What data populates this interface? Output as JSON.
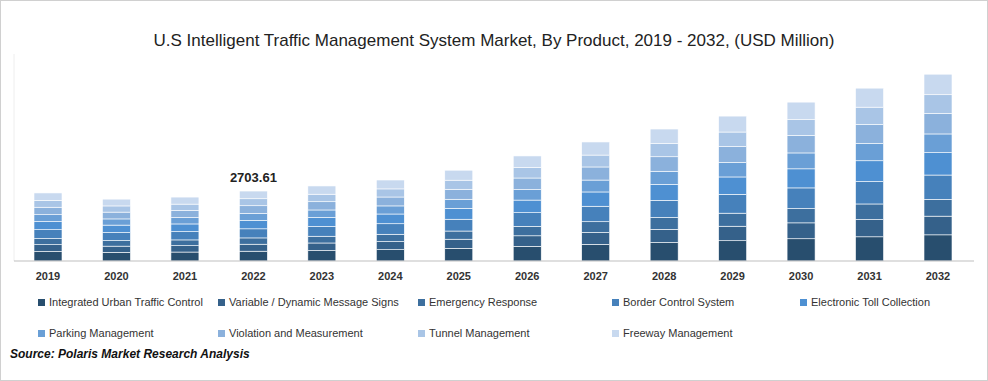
{
  "chart_data": {
    "type": "bar",
    "stacked": true,
    "title": "U.S Intelligent Traffic Management System Market, By Product, 2019 - 2032, (USD Million)",
    "categories": [
      "2019",
      "2020",
      "2021",
      "2022",
      "2023",
      "2024",
      "2025",
      "2026",
      "2027",
      "2028",
      "2029",
      "2030",
      "2031",
      "2032"
    ],
    "series": [
      {
        "name": "Integrated Urban Traffic Control",
        "color": "#284e6e",
        "values": [
          368,
          335,
          346,
          378.51,
          406,
          438,
          491,
          568,
          644,
          714,
          784,
          860,
          935,
          1011
        ]
      },
      {
        "name": "Variable / Dynamic Message Signs",
        "color": "#35618a",
        "values": [
          263,
          239,
          247,
          270.36,
          290,
          313,
          351,
          406,
          460,
          510,
          560,
          614,
          668,
          722
        ]
      },
      {
        "name": "Emergency Response",
        "color": "#3d6f9e",
        "values": [
          237,
          215,
          222,
          243.32,
          261,
          282,
          316,
          365,
          414,
          459,
          504,
          553,
          601,
          650
        ]
      },
      {
        "name": "Border Control System",
        "color": "#4681bb",
        "values": [
          342,
          311,
          321,
          351.47,
          377,
          407,
          456,
          528,
          598,
          663,
          728,
          798,
          868,
          939
        ]
      },
      {
        "name": "Electronic Toll Collection",
        "color": "#4e90d2",
        "values": [
          316,
          287,
          296,
          324.43,
          348,
          376,
          421,
          487,
          552,
          612,
          672,
          737,
          802,
          866
        ]
      },
      {
        "name": "Parking Management",
        "color": "#6a9fd6",
        "values": [
          263,
          239,
          247,
          270.36,
          290,
          313,
          351,
          406,
          460,
          510,
          560,
          614,
          668,
          722
        ]
      },
      {
        "name": "Violation and Measurement",
        "color": "#8bb1dc",
        "values": [
          289,
          263,
          272,
          297.4,
          319,
          344,
          386,
          447,
          506,
          561,
          616,
          675,
          735,
          794
        ]
      },
      {
        "name": "Tunnel Management",
        "color": "#a9c5e6",
        "values": [
          263,
          239,
          247,
          270.36,
          290,
          313,
          351,
          406,
          460,
          510,
          560,
          614,
          668,
          722
        ]
      },
      {
        "name": "Freeway Management",
        "color": "#c8d9ef",
        "values": [
          289,
          263,
          272,
          297.4,
          319,
          344,
          386,
          447,
          506,
          561,
          616,
          675,
          735,
          794
        ]
      }
    ],
    "ylim": [
      0,
      8000
    ],
    "tick_labels": "x",
    "annotations": [
      {
        "category": "2022",
        "value": 2703.61,
        "label": "2703.61"
      }
    ],
    "source": "Source: Polaris Market Research Analysis"
  }
}
